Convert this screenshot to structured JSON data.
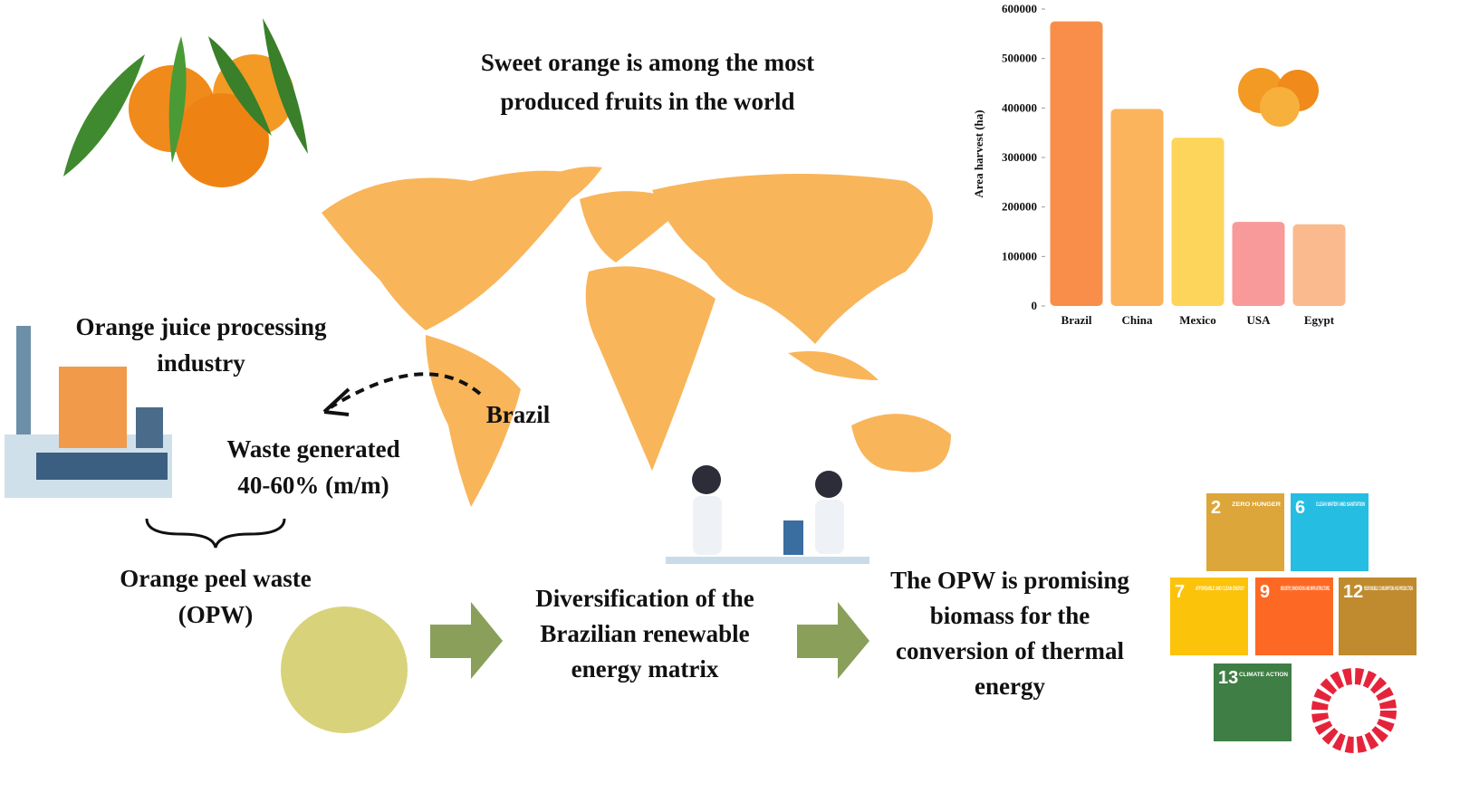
{
  "title": [
    "Sweet orange is among the most",
    "produced fruits in the world"
  ],
  "industry": [
    "Orange juice processing",
    "industry"
  ],
  "brazil": "Brazil",
  "waste": [
    "Waste generated",
    "40-60% (m/m)"
  ],
  "opw": [
    "Orange peel waste",
    "(OPW)"
  ],
  "diversification": [
    "Diversification of the",
    "Brazilian renewable",
    "energy matrix"
  ],
  "promising": [
    "The OPW is promising",
    "biomass for the",
    "conversion of thermal",
    "energy"
  ],
  "sdgs": [
    {
      "number": "2",
      "label": "ZERO HUNGER",
      "color": "#dda63a"
    },
    {
      "number": "6",
      "label": "CLEAN WATER AND SANITATION",
      "color": "#26bde2"
    },
    {
      "number": "7",
      "label": "AFFORDABLE AND CLEAN ENERGY",
      "color": "#fcc30b"
    },
    {
      "number": "9",
      "label": "INDUSTRY, INNOVATION AND INFRASTRUCTURE",
      "color": "#fd6925"
    },
    {
      "number": "12",
      "label": "RESPONSIBLE CONSUMPTION AND PRODUCTION",
      "color": "#bf8b2e"
    },
    {
      "number": "13",
      "label": "CLIMATE ACTION",
      "color": "#3f7e44"
    }
  ],
  "chart_data": {
    "type": "bar",
    "y_label": "Area harvest (ha)",
    "categories": [
      "Brazil",
      "China",
      "Mexico",
      "USA",
      "Egypt"
    ],
    "values": [
      575000,
      398000,
      340000,
      170000,
      165000
    ],
    "colors": [
      "#f98e4a",
      "#fbb35c",
      "#fcd55a",
      "#f99a9a",
      "#fbb98e"
    ],
    "ylim": [
      0,
      600000
    ],
    "yticks": [
      0,
      100000,
      200000,
      300000,
      400000,
      500000,
      600000
    ]
  }
}
